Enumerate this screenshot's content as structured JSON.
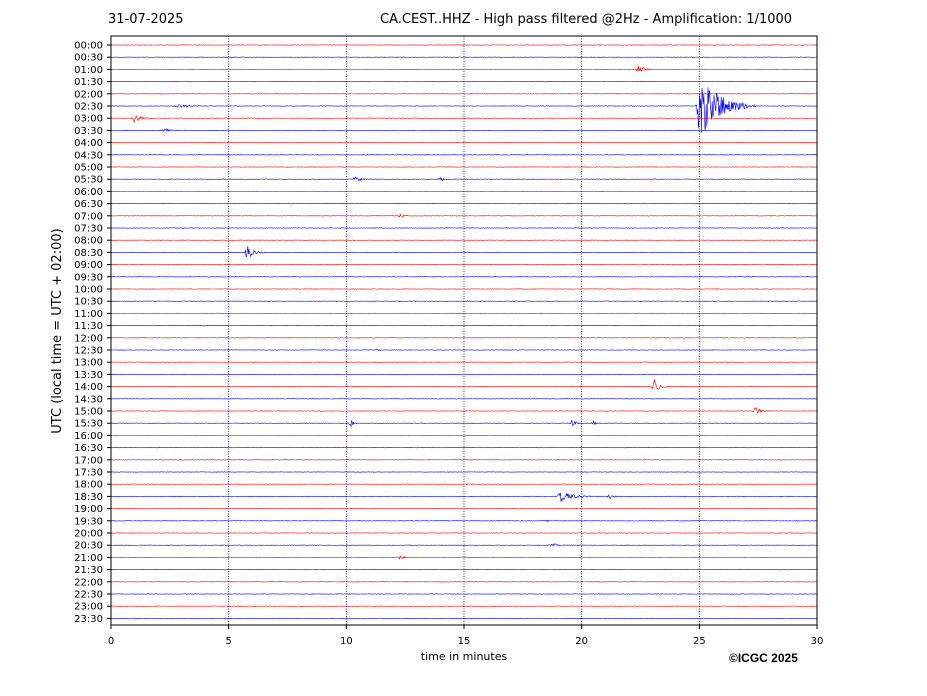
{
  "header": {
    "date": "31-07-2025",
    "title": "CA.CEST..HHZ - High pass filtered @2Hz - Amplification: 1/1000"
  },
  "footer": {
    "copyright": "©ICGC 2025"
  },
  "colors": {
    "trace_a": "#ff0000",
    "trace_b": "#0000ff",
    "vgrid": "#00008b"
  },
  "chart_data": {
    "type": "line",
    "subtype": "helicorder",
    "xlabel": "time in minutes",
    "ylabel": "UTC (local time = UTC + 02:00)",
    "xlim": [
      0,
      30
    ],
    "xticks": [
      0,
      5,
      10,
      15,
      20,
      25,
      30
    ],
    "vertical_grid": [
      5,
      10,
      15,
      20,
      25
    ],
    "rows": [
      "00:00",
      "00:30",
      "01:00",
      "01:30",
      "02:00",
      "02:30",
      "03:00",
      "03:30",
      "04:00",
      "04:30",
      "05:00",
      "05:30",
      "06:00",
      "06:30",
      "07:00",
      "07:30",
      "08:00",
      "08:30",
      "09:00",
      "09:30",
      "10:00",
      "10:30",
      "11:00",
      "11:30",
      "12:00",
      "12:30",
      "13:00",
      "13:30",
      "14:00",
      "14:30",
      "15:00",
      "15:30",
      "16:00",
      "16:30",
      "17:00",
      "17:30",
      "18:00",
      "18:30",
      "19:00",
      "19:30",
      "20:00",
      "20:30",
      "21:00",
      "21:30",
      "22:00",
      "22:30",
      "23:00",
      "23:30"
    ],
    "row_colors": [
      "#ff0000",
      "#0000ff"
    ],
    "events": [
      {
        "row": "01:00",
        "minute": 22.4,
        "amplitude": 0.3,
        "duration": 0.8
      },
      {
        "row": "02:30",
        "minute": 2.8,
        "amplitude": 0.2,
        "duration": 1.5
      },
      {
        "row": "02:30",
        "minute": 25.0,
        "amplitude": 2.7,
        "duration": 2.4
      },
      {
        "row": "03:00",
        "minute": 1.0,
        "amplitude": 0.4,
        "duration": 0.8
      },
      {
        "row": "03:30",
        "minute": 2.3,
        "amplitude": 0.2,
        "duration": 0.6
      },
      {
        "row": "05:30",
        "minute": 10.4,
        "amplitude": 0.3,
        "duration": 0.6
      },
      {
        "row": "05:30",
        "minute": 14.0,
        "amplitude": 0.2,
        "duration": 0.6
      },
      {
        "row": "07:00",
        "minute": 12.3,
        "amplitude": 0.2,
        "duration": 0.6
      },
      {
        "row": "08:30",
        "minute": 5.8,
        "amplitude": 0.6,
        "duration": 0.8
      },
      {
        "row": "12:30",
        "minute": 11.3,
        "amplitude": 0.1,
        "duration": 0.4
      },
      {
        "row": "14:00",
        "minute": 23.1,
        "amplitude": 0.7,
        "duration": 0.6
      },
      {
        "row": "15:00",
        "minute": 27.4,
        "amplitude": 0.3,
        "duration": 0.8
      },
      {
        "row": "15:30",
        "minute": 10.2,
        "amplitude": 0.3,
        "duration": 0.4
      },
      {
        "row": "15:30",
        "minute": 19.6,
        "amplitude": 0.3,
        "duration": 0.5
      },
      {
        "row": "15:30",
        "minute": 20.5,
        "amplitude": 0.2,
        "duration": 0.4
      },
      {
        "row": "18:30",
        "minute": 19.1,
        "amplitude": 0.5,
        "duration": 1.6
      },
      {
        "row": "18:30",
        "minute": 21.2,
        "amplitude": 0.2,
        "duration": 0.6
      },
      {
        "row": "19:30",
        "minute": 18.5,
        "amplitude": 0.1,
        "duration": 0.4
      },
      {
        "row": "20:30",
        "minute": 18.8,
        "amplitude": 0.2,
        "duration": 0.5
      },
      {
        "row": "21:00",
        "minute": 12.3,
        "amplitude": 0.2,
        "duration": 0.4
      }
    ]
  }
}
